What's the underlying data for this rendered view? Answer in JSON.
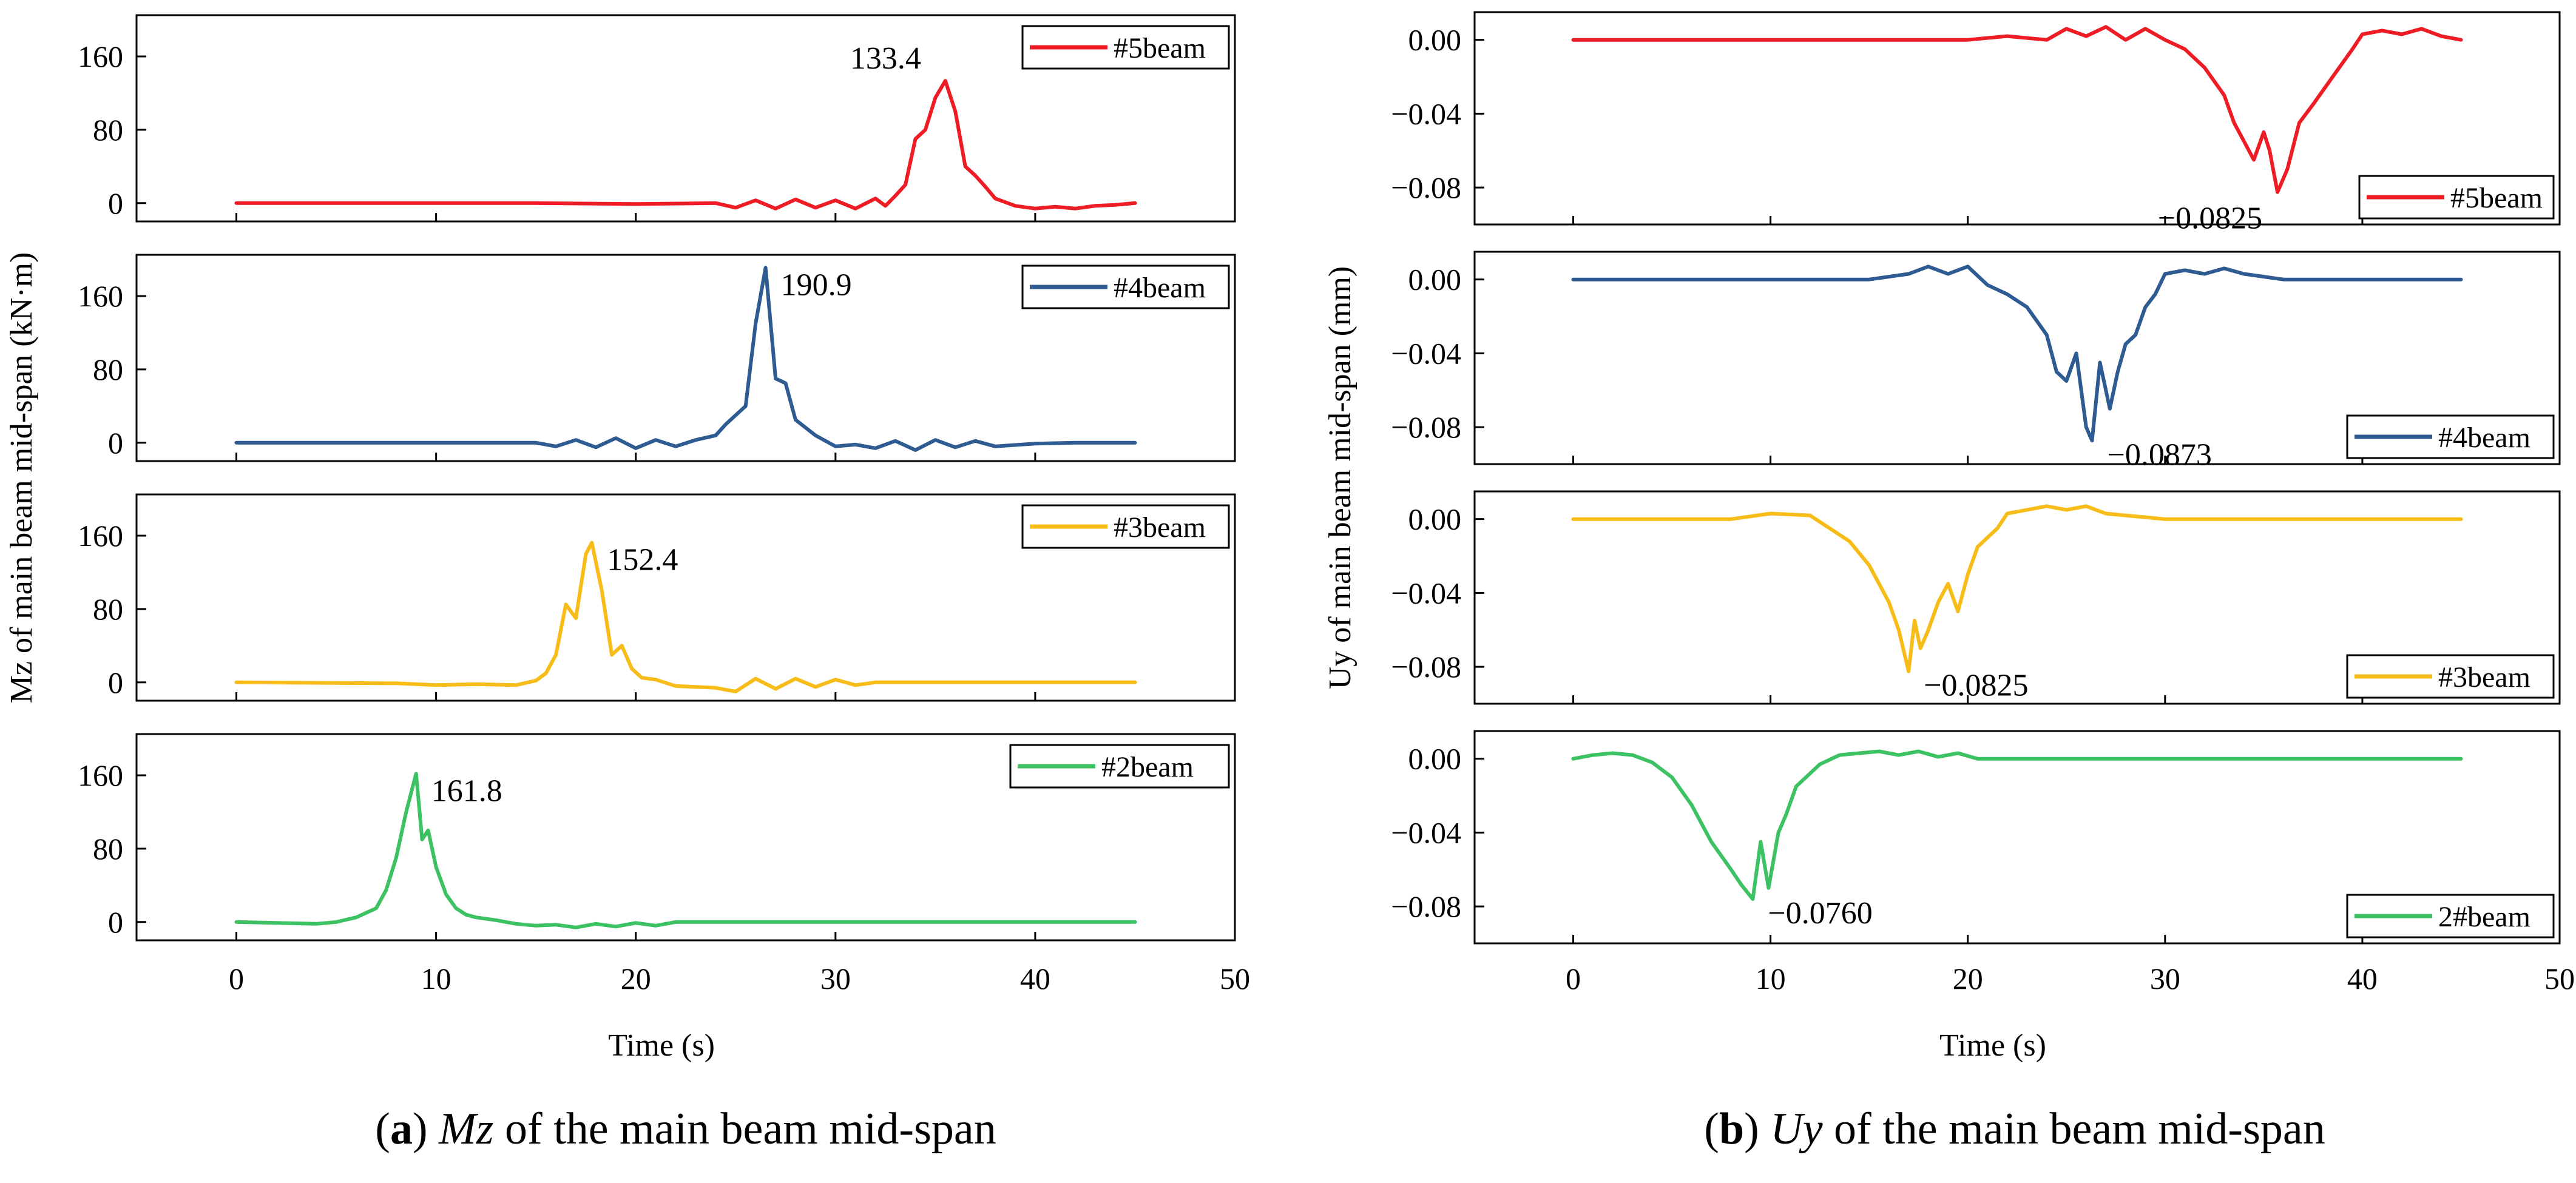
{
  "colors": {
    "#5beam": "#ee1c25",
    "#4beam": "#2e5b91",
    "#3beam": "#f7bc18",
    "#2beam": "#3cc163"
  },
  "chart_data": [
    {
      "type": "line",
      "panel": "a",
      "xlabel": "Time (s)",
      "ylabel": "Mz of main beam mid-span (kN·m)",
      "xlim": [
        -5,
        50
      ],
      "xticks": [
        "0",
        "10",
        "20",
        "30",
        "40",
        "50"
      ],
      "caption": {
        "letter": "(a)",
        "var": "Mz",
        "rest": " of the main beam mid-span"
      },
      "subplots": [
        {
          "legend": "#5beam",
          "color_key": "#5beam",
          "ylim": [
            -20,
            205
          ],
          "yticks": [
            "0",
            "80",
            "160"
          ],
          "peak": {
            "x": 35.5,
            "y": 133.4,
            "label": "133.4"
          },
          "x": [
            0,
            15,
            20,
            24,
            25,
            26,
            27,
            28,
            29,
            30,
            31,
            32,
            32.5,
            33,
            33.5,
            34,
            34.5,
            35,
            35.5,
            36,
            36.5,
            37,
            37.5,
            38,
            39,
            40,
            41,
            42,
            43,
            44,
            45
          ],
          "y": [
            0,
            0,
            -1,
            0,
            -5,
            3,
            -6,
            4,
            -5,
            3,
            -6,
            5,
            -3,
            8,
            20,
            70,
            80,
            115,
            133.4,
            100,
            40,
            30,
            18,
            5,
            -3,
            -6,
            -4,
            -6,
            -3,
            -2,
            0
          ]
        },
        {
          "legend": "#4beam",
          "color_key": "#4beam",
          "ylim": [
            -20,
            205
          ],
          "yticks": [
            "0",
            "80",
            "160"
          ],
          "peak": {
            "x": 26.5,
            "y": 190.9,
            "label": "190.9"
          },
          "x": [
            0,
            15,
            16,
            17,
            18,
            19,
            20,
            21,
            22,
            23,
            24,
            24.5,
            25,
            25.5,
            26,
            26.5,
            27,
            27.5,
            28,
            29,
            30,
            31,
            32,
            33,
            34,
            35,
            36,
            37,
            38,
            40,
            42,
            45
          ],
          "y": [
            0,
            0,
            -4,
            3,
            -5,
            5,
            -6,
            3,
            -4,
            3,
            8,
            20,
            30,
            40,
            130,
            190.9,
            70,
            65,
            25,
            8,
            -4,
            -2,
            -6,
            2,
            -8,
            3,
            -5,
            2,
            -4,
            -1,
            0,
            0
          ]
        },
        {
          "legend": "#3beam",
          "color_key": "#3beam",
          "ylim": [
            -20,
            205
          ],
          "yticks": [
            "0",
            "80",
            "160"
          ],
          "peak": {
            "x": 17.8,
            "y": 152.4,
            "label": "152.4"
          },
          "x": [
            0,
            8,
            10,
            12,
            14,
            15,
            15.5,
            16,
            16.5,
            17,
            17.5,
            17.8,
            18.3,
            18.8,
            19.3,
            19.8,
            20.3,
            21,
            22,
            24,
            25,
            26,
            27,
            28,
            29,
            30,
            31,
            32,
            35,
            40,
            45
          ],
          "y": [
            0,
            -1,
            -3,
            -2,
            -3,
            2,
            10,
            30,
            85,
            70,
            140,
            152.4,
            100,
            30,
            40,
            15,
            5,
            3,
            -4,
            -6,
            -10,
            4,
            -7,
            4,
            -5,
            3,
            -3,
            0,
            0,
            0,
            0
          ],
          "x_note": "peak near 17.8 s"
        },
        {
          "legend": "#2beam",
          "color_key": "#2beam",
          "ylim": [
            -20,
            205
          ],
          "yticks": [
            "0",
            "80",
            "160"
          ],
          "peak": {
            "x": 9.0,
            "y": 161.8,
            "label": "161.8"
          },
          "x": [
            0,
            2,
            4,
            5,
            6,
            7,
            7.5,
            8,
            8.5,
            9,
            9.3,
            9.6,
            10,
            10.5,
            11,
            11.5,
            12,
            13,
            14,
            15,
            16,
            17,
            18,
            19,
            20,
            21,
            22,
            25,
            30,
            35,
            45
          ],
          "y": [
            0,
            -1,
            -2,
            0,
            5,
            15,
            35,
            70,
            120,
            161.8,
            90,
            100,
            60,
            30,
            15,
            8,
            5,
            2,
            -2,
            -4,
            -3,
            -6,
            -2,
            -5,
            -1,
            -4,
            0,
            0,
            0,
            0,
            0
          ]
        }
      ]
    },
    {
      "type": "line",
      "panel": "b",
      "xlabel": "Time (s)",
      "ylabel": "Uy of main beam mid-span (mm)",
      "xlim": [
        -5,
        50
      ],
      "xticks": [
        "0",
        "10",
        "20",
        "30",
        "40",
        "50"
      ],
      "caption": {
        "letter": "(b)",
        "var": "Uy",
        "rest": " of the main beam mid-span"
      },
      "subplots": [
        {
          "legend": "#5beam",
          "color_key": "#5beam",
          "ylim": [
            -0.1,
            0.015
          ],
          "yticks": [
            "0.00",
            "−0.04",
            "−0.08"
          ],
          "peak": {
            "x": 35.7,
            "y": -0.0825,
            "label": "−0.0825"
          },
          "x": [
            0,
            10,
            20,
            22,
            24,
            25,
            26,
            27,
            28,
            29,
            30,
            31,
            32,
            33,
            33.5,
            34,
            34.5,
            35,
            35.3,
            35.7,
            36.2,
            36.8,
            37.5,
            38.5,
            39.5,
            40,
            41,
            42,
            43,
            44,
            45
          ],
          "y": [
            0,
            0,
            0,
            0.002,
            0,
            0.006,
            0.002,
            0.007,
            0,
            0.006,
            0,
            -0.005,
            -0.015,
            -0.03,
            -0.045,
            -0.055,
            -0.065,
            -0.05,
            -0.06,
            -0.0825,
            -0.07,
            -0.045,
            -0.035,
            -0.02,
            -0.005,
            0.003,
            0.005,
            0.003,
            0.006,
            0.002,
            0
          ]
        },
        {
          "legend": "#4beam",
          "color_key": "#4beam",
          "ylim": [
            -0.1,
            0.015
          ],
          "yticks": [
            "0.00",
            "−0.04",
            "−0.08"
          ],
          "peak": {
            "x": 26.3,
            "y": -0.0873,
            "label": "−0.0873"
          },
          "x": [
            0,
            10,
            15,
            17,
            18,
            19,
            20,
            21,
            22,
            23,
            24,
            24.5,
            25,
            25.5,
            26,
            26.3,
            26.7,
            27.2,
            27.6,
            28,
            28.5,
            29,
            29.5,
            30,
            31,
            32,
            33,
            34,
            36,
            38,
            45
          ],
          "y": [
            0,
            0,
            0,
            0.003,
            0.007,
            0.003,
            0.007,
            -0.003,
            -0.008,
            -0.015,
            -0.03,
            -0.05,
            -0.055,
            -0.04,
            -0.08,
            -0.0873,
            -0.045,
            -0.07,
            -0.05,
            -0.035,
            -0.03,
            -0.015,
            -0.008,
            0.003,
            0.005,
            0.003,
            0.006,
            0.003,
            0,
            0,
            0
          ]
        },
        {
          "legend": "#3beam",
          "color_key": "#3beam",
          "ylim": [
            -0.1,
            0.015
          ],
          "yticks": [
            "0.00",
            "−0.04",
            "−0.08"
          ],
          "peak": {
            "x": 17.0,
            "y": -0.0825,
            "label": "−0.0825"
          },
          "x": [
            0,
            8,
            10,
            12,
            13,
            14,
            15,
            16,
            16.5,
            17,
            17.3,
            17.6,
            18,
            18.5,
            19,
            19.5,
            20,
            20.5,
            21,
            21.5,
            22,
            23,
            24,
            25,
            26,
            27,
            28,
            30,
            32,
            36,
            45
          ],
          "y": [
            0,
            0,
            0.003,
            0.002,
            -0.005,
            -0.012,
            -0.025,
            -0.045,
            -0.06,
            -0.0825,
            -0.055,
            -0.07,
            -0.06,
            -0.045,
            -0.035,
            -0.05,
            -0.03,
            -0.015,
            -0.01,
            -0.005,
            0.003,
            0.005,
            0.007,
            0.005,
            0.007,
            0.003,
            0.002,
            0,
            0,
            0,
            0
          ]
        },
        {
          "legend": "2#beam",
          "color_key": "#2beam",
          "ylim": [
            -0.1,
            0.015
          ],
          "yticks": [
            "0.00",
            "−0.04",
            "−0.08"
          ],
          "peak": {
            "x": 9.1,
            "y": -0.076,
            "label": "−0.0760"
          },
          "x": [
            0,
            1,
            2,
            3,
            4,
            5,
            6,
            7,
            8,
            8.5,
            9.1,
            9.5,
            9.9,
            10.4,
            10.8,
            11.3,
            11.8,
            12.5,
            13.5,
            14.5,
            15.5,
            16.5,
            17.5,
            18.5,
            19.5,
            20.5,
            22,
            25,
            30,
            35,
            45
          ],
          "y": [
            0,
            0.002,
            0.003,
            0.002,
            -0.002,
            -0.01,
            -0.025,
            -0.045,
            -0.06,
            -0.068,
            -0.076,
            -0.045,
            -0.07,
            -0.04,
            -0.03,
            -0.015,
            -0.01,
            -0.003,
            0.002,
            0.003,
            0.004,
            0.002,
            0.004,
            0.001,
            0.003,
            0,
            0,
            0,
            0,
            0,
            0
          ]
        }
      ]
    }
  ]
}
